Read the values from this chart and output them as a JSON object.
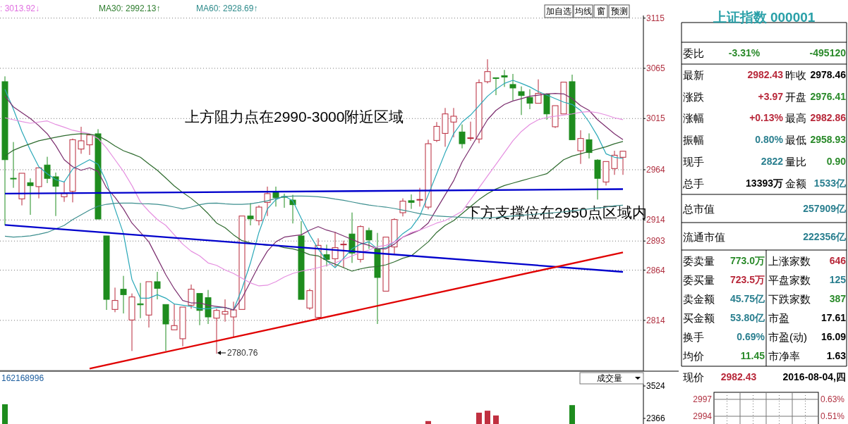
{
  "chart_data": [
    {
      "type": "candlestick",
      "categories": [
        null,
        null,
        null,
        null,
        null,
        null,
        null,
        null,
        null,
        null,
        null,
        null,
        null,
        null,
        null,
        null,
        null,
        null,
        null,
        null,
        null,
        null,
        null,
        null,
        null,
        null,
        null,
        null,
        null,
        null,
        null,
        null,
        null,
        null,
        null,
        null,
        null,
        null,
        null,
        null,
        null,
        null,
        null,
        null,
        null,
        null,
        null,
        null,
        null,
        null,
        null,
        null,
        null,
        null,
        null,
        null,
        null,
        null,
        null,
        null,
        null,
        null,
        null,
        null,
        null,
        null,
        null,
        null,
        null,
        null,
        null,
        null,
        null,
        null
      ],
      "ylim": [
        2764.8,
        3117.6
      ],
      "yticks": [
        3115,
        3065,
        3015,
        2964,
        2914,
        2893,
        2864,
        2814
      ],
      "grid": "y",
      "ohlc": [
        [
          3051.7,
          3057.0,
          2908.6,
          2974.0
        ],
        [
          2955.5,
          2991.6,
          2946.0,
          2954.9
        ],
        [
          2935.0,
          2960.5,
          2928.5,
          2960.5
        ],
        [
          2951.1,
          2955.4,
          2919.1,
          2948.1
        ],
        [
          2947.2,
          2965.9,
          2935.5,
          2965.9
        ],
        [
          2968.7,
          2976.9,
          2950.7,
          2955.4
        ],
        [
          2957.0,
          2961.2,
          2917.9,
          2947.6
        ],
        [
          2937.1,
          2951.8,
          2932.0,
          2940.2
        ],
        [
          2942.5,
          2995.0,
          2931.5,
          2993.9
        ],
        [
          2984.6,
          3006.8,
          2979.9,
          2992.8
        ],
        [
          2988.8,
          2999.8,
          2978.7,
          2998.6
        ],
        [
          2999.8,
          3004.4,
          2914.9,
          2914.9
        ],
        [
          2898.1,
          2898.1,
          2824.4,
          2834.9
        ],
        [
          2824.9,
          2846.6,
          2822.1,
          2833.8
        ],
        [
          2845.0,
          2858.3,
          2820.9,
          2839.6
        ],
        [
          2814.4,
          2840.8,
          2783.5,
          2837.3
        ],
        [
          2830.5,
          2851.3,
          2816.2,
          2829.5
        ],
        [
          2819.3,
          2852.5,
          2806.9,
          2852.5
        ],
        [
          2852.5,
          2862.3,
          2834.9,
          2845.9
        ],
        [
          2829.8,
          2829.8,
          2783.5,
          2810.4
        ],
        [
          2804.6,
          2830.3,
          2804.6,
          2808.8
        ],
        [
          2795.7,
          2827.2,
          2788.2,
          2827.2
        ],
        [
          2829.1,
          2849.7,
          2825.6,
          2845.0
        ],
        [
          2840.8,
          2840.8,
          2809.2,
          2823.9
        ],
        [
          2836.6,
          2844.3,
          2810.4,
          2817.4
        ],
        [
          2816.2,
          2825.6,
          2780.76,
          2823.9
        ],
        [
          2820.2,
          2834.9,
          2812.7,
          2822.8
        ],
        [
          2817.4,
          2832.6,
          2797.5,
          2824.4
        ],
        [
          2824.9,
          2917.9,
          2824.9,
          2917.9
        ],
        [
          2917.9,
          2930.8,
          2908.6,
          2915.1
        ],
        [
          2913.3,
          2928.5,
          2908.6,
          2926.8
        ],
        [
          2931.5,
          2947.2,
          2917.9,
          2940.2
        ],
        [
          2941.8,
          2947.2,
          2927.3,
          2936.2
        ],
        [
          2937.3,
          2940.2,
          2926.1,
          2936.9
        ],
        [
          2933.8,
          2939.0,
          2910.5,
          2929.2
        ],
        [
          2898.1,
          2912.8,
          2834.9,
          2834.9
        ],
        [
          2826.3,
          2845.5,
          2824.4,
          2843.6
        ],
        [
          2817.0,
          2895.7,
          2816.2,
          2888.7
        ],
        [
          2879.4,
          2889.4,
          2867.7,
          2874.7
        ],
        [
          2875.4,
          2902.0,
          2867.7,
          2886.4
        ],
        [
          2889.5,
          2893.4,
          2866.5,
          2889.9
        ],
        [
          2900.0,
          2921.4,
          2871.2,
          2881.0
        ],
        [
          2874.7,
          2908.6,
          2871.7,
          2907.4
        ],
        [
          2903.5,
          2906.3,
          2885.2,
          2894.1
        ],
        [
          2885.2,
          2901.1,
          2810.4,
          2856.7
        ],
        [
          2843.1,
          2896.9,
          2843.1,
          2896.9
        ],
        [
          2887.1,
          2915.6,
          2880.5,
          2914.4
        ],
        [
          2921.2,
          2935.5,
          2917.5,
          2932.7
        ],
        [
          2933.2,
          2939.4,
          2925.0,
          2931.5
        ],
        [
          2934.0,
          2946.0,
          2927.3,
          2934.4
        ],
        [
          2926.8,
          2993.9,
          2924.5,
          2989.9
        ],
        [
          2993.2,
          3011.5,
          2991.6,
          3007.2
        ],
        [
          3000.2,
          3025.5,
          2986.9,
          3019.6
        ],
        [
          3011.5,
          3025.5,
          2996.3,
          3017.3
        ],
        [
          3001.6,
          3009.1,
          2985.3,
          2989.9
        ],
        [
          2995.4,
          3011.9,
          2992.8,
          2995.8
        ],
        [
          2994.6,
          3054.0,
          2990.4,
          3050.7
        ],
        [
          3051.7,
          3074.0,
          3050.0,
          3061.7
        ],
        [
          3055.6,
          3055.6,
          3038.3,
          3055.2
        ],
        [
          3057.7,
          3063.4,
          3046.5,
          3056.3
        ],
        [
          3048.9,
          3059.4,
          3033.0,
          3045.4
        ],
        [
          3041.8,
          3047.0,
          3018.5,
          3037.9
        ],
        [
          3036.0,
          3044.2,
          3024.3,
          3030.2
        ],
        [
          3030.2,
          3054.0,
          3030.2,
          3040.0
        ],
        [
          3039.5,
          3040.0,
          3013.8,
          3019.6
        ],
        [
          3006.8,
          3027.8,
          3005.6,
          3027.8
        ],
        [
          3019.6,
          3051.2,
          3019.6,
          3051.2
        ],
        [
          3051.7,
          3058.7,
          2993.9,
          2993.9
        ],
        [
          2982.9,
          3003.3,
          2969.8,
          2995.1
        ],
        [
          2993.9,
          3000.2,
          2975.2,
          2981.1
        ],
        [
          2973.6,
          2974.5,
          2934.3,
          2955.4
        ],
        [
          2951.8,
          2972.2,
          2948.3,
          2972.2
        ],
        [
          2965.2,
          2982.9,
          2958.9,
          2978.46
        ],
        [
          2976.41,
          2982.86,
          2958.93,
          2982.43
        ]
      ],
      "series": [
        {
          "type": "line",
          "color": "#2aa8b8",
          "values": [
            3044.2,
            3024.3,
            3002.1,
            2983.4,
            2967.0,
            2960.0,
            2954.2,
            2951.8,
            2964.7,
            2969.4,
            2974.0,
            2969.4,
            2951.8,
            2925.0,
            2900.4,
            2854.8,
            2836.1,
            2836.1,
            2839.6,
            2836.1,
            2830.3,
            2829.1,
            2827.9,
            2825.6,
            2825.6,
            2826.8,
            2826.8,
            2824.4,
            2845.5,
            2871.2,
            2901.6,
            2925.0,
            2934.3,
            2937.8,
            2933.1,
            2915.6,
            2899.2,
            2885.2,
            2873.5,
            2866.5,
            2875.9,
            2885.2,
            2889.9,
            2892.2,
            2885.2,
            2886.4,
            2892.2,
            2900.4,
            2906.2,
            2917.9,
            2939.0,
            2960.0,
            2981.1,
            2999.8,
            3011.5,
            3018.5,
            3027.8,
            3037.2,
            3044.2,
            3050.0,
            3053.1,
            3050.0,
            3046.5,
            3041.8,
            3038.3,
            3034.8,
            3031.3,
            3029.0,
            3023.1,
            3011.5,
            2997.4,
            2979.9,
            2976.4,
            2975.2
          ]
        },
        {
          "type": "line",
          "color": "#7b2d6e",
          "values": [
            3037.2,
            3026.6,
            3020.8,
            3015.0,
            3007.9,
            2999.8,
            2988.1,
            2974.0,
            2967.0,
            2963.5,
            2965.9,
            2962.3,
            2946.0,
            2936.6,
            2925.0,
            2910.9,
            2901.6,
            2892.2,
            2875.9,
            2859.5,
            2845.5,
            2833.8,
            2831.4,
            2831.4,
            2829.1,
            2827.9,
            2826.8,
            2824.4,
            2836.1,
            2852.5,
            2868.8,
            2882.9,
            2892.2,
            2896.9,
            2898.1,
            2899.2,
            2903.9,
            2907.4,
            2903.9,
            2901.6,
            2898.1,
            2894.6,
            2891.1,
            2888.7,
            2885.2,
            2885.2,
            2889.9,
            2896.9,
            2900.4,
            2903.9,
            2910.9,
            2925.0,
            2939.0,
            2953.0,
            2971.7,
            2985.7,
            2999.8,
            3013.8,
            3023.1,
            3029.0,
            3032.5,
            3034.8,
            3037.2,
            3038.3,
            3039.5,
            3040.0,
            3039.5,
            3034.8,
            3027.8,
            3023.1,
            3013.8,
            3006.8,
            2999.8,
            2993.9
          ]
        },
        {
          "type": "line",
          "color": "#e58fe0",
          "values": [
            3015.7,
            3013.8,
            3011.9,
            3010.3,
            3011.5,
            3012.6,
            3009.1,
            3006.3,
            3003.3,
            3001.6,
            2999.8,
            2995.1,
            2985.7,
            2974.0,
            2962.3,
            2948.3,
            2932.0,
            2922.6,
            2914.4,
            2908.6,
            2899.2,
            2889.9,
            2882.9,
            2878.2,
            2871.2,
            2868.8,
            2864.2,
            2860.7,
            2856.0,
            2851.3,
            2848.3,
            2849.0,
            2852.5,
            2857.2,
            2860.7,
            2863.0,
            2864.6,
            2866.5,
            2868.8,
            2871.2,
            2874.7,
            2878.2,
            2881.7,
            2884.0,
            2887.5,
            2888.7,
            2892.2,
            2896.9,
            2901.6,
            2903.9,
            2907.4,
            2910.9,
            2913.3,
            2917.9,
            2922.6,
            2934.3,
            2946.0,
            2957.7,
            2969.4,
            2981.1,
            2992.8,
            3002.1,
            3009.1,
            3013.8,
            3016.1,
            3017.3,
            3018.5,
            3019.6,
            3021.3,
            3022.0,
            3020.8,
            3018.5,
            3015.7,
            3013.9
          ]
        },
        {
          "type": "line",
          "color": "#2e6b2e",
          "values": [
            2977.6,
            2983.4,
            2986.9,
            2989.9,
            2992.8,
            2994.6,
            2996.3,
            2997.9,
            2999.1,
            2999.8,
            2999.3,
            2997.9,
            2993.2,
            2987.6,
            2982.9,
            2979.9,
            2976.4,
            2969.8,
            2963.5,
            2955.8,
            2947.9,
            2941.3,
            2935.5,
            2928.5,
            2920.3,
            2910.9,
            2906.3,
            2899.2,
            2893.4,
            2891.1,
            2889.9,
            2888.7,
            2888.7,
            2886.4,
            2885.2,
            2882.9,
            2879.4,
            2878.2,
            2873.5,
            2870.0,
            2866.5,
            2863.0,
            2865.3,
            2867.0,
            2867.7,
            2869.3,
            2872.3,
            2875.9,
            2878.2,
            2885.2,
            2892.2,
            2901.6,
            2908.6,
            2913.3,
            2920.3,
            2927.3,
            2934.3,
            2940.2,
            2944.8,
            2948.3,
            2950.7,
            2953.0,
            2955.4,
            2957.7,
            2960.0,
            2967.0,
            2974.0,
            2977.6,
            2979.9,
            2982.2,
            2984.6,
            2986.9,
            2989.9,
            2992.1
          ]
        },
        {
          "type": "line",
          "color": "#3d8f8f",
          "values": [
            2897.8,
            2896.9,
            2897.4,
            2898.1,
            2899.7,
            2901.6,
            2905.1,
            2908.6,
            2914.4,
            2919.1,
            2923.8,
            2927.7,
            2929.6,
            2930.6,
            2930.8,
            2930.8,
            2930.3,
            2930.1,
            2929.6,
            2928.5,
            2926.8,
            2925.0,
            2926.8,
            2929.2,
            2930.6,
            2930.8,
            2930.1,
            2929.6,
            2929.6,
            2930.1,
            2931.5,
            2933.1,
            2935.5,
            2937.1,
            2937.8,
            2937.8,
            2937.6,
            2937.1,
            2936.2,
            2934.8,
            2933.6,
            2931.9,
            2930.3,
            2928.9,
            2927.7,
            2926.8,
            2925.4,
            2923.8,
            2922.1,
            2920.3,
            2919.1,
            2917.9,
            2917.5,
            2917.0,
            2916.5,
            2916.1,
            2915.8,
            2916.1,
            2916.5,
            2917.2,
            2917.9,
            2918.6,
            2919.3,
            2920.0,
            2920.7,
            2921.4,
            2922.1,
            2923.1,
            2924.0,
            2925.0,
            2925.9,
            2926.8,
            2928.2,
            2928.7
          ]
        },
        {
          "type": "line",
          "color": "#0000cc",
          "values": [
            2940.2,
            null,
            null,
            null,
            null,
            null,
            null,
            null,
            null,
            null,
            null,
            null,
            null,
            null,
            null,
            null,
            null,
            null,
            null,
            null,
            null,
            null,
            null,
            null,
            null,
            null,
            null,
            null,
            null,
            null,
            null,
            null,
            null,
            null,
            null,
            null,
            null,
            null,
            null,
            null,
            null,
            null,
            null,
            null,
            null,
            null,
            null,
            null,
            null,
            null,
            null,
            null,
            null,
            null,
            null,
            null,
            null,
            null,
            null,
            null,
            null,
            null,
            null,
            null,
            null,
            null,
            null,
            null,
            null,
            null,
            null,
            null,
            null,
            2944.7
          ]
        },
        {
          "type": "line",
          "color": "#0000cc",
          "values": [
            2909.0,
            null,
            null,
            null,
            null,
            null,
            null,
            null,
            null,
            null,
            null,
            null,
            null,
            null,
            null,
            null,
            null,
            null,
            null,
            null,
            null,
            null,
            null,
            null,
            null,
            null,
            null,
            null,
            null,
            null,
            null,
            null,
            null,
            null,
            null,
            null,
            null,
            null,
            null,
            null,
            null,
            null,
            null,
            null,
            null,
            null,
            null,
            null,
            null,
            null,
            null,
            null,
            null,
            null,
            null,
            null,
            null,
            null,
            null,
            null,
            null,
            null,
            null,
            null,
            null,
            null,
            null,
            null,
            null,
            null,
            null,
            null,
            null,
            2862.3
          ]
        },
        {
          "type": "line",
          "color": "#e00000",
          "values": [
            null,
            null,
            null,
            null,
            null,
            null,
            null,
            null,
            null,
            null,
            2766.0,
            null,
            null,
            null,
            null,
            null,
            null,
            null,
            null,
            null,
            null,
            null,
            null,
            null,
            null,
            null,
            null,
            null,
            null,
            null,
            null,
            null,
            null,
            null,
            null,
            null,
            null,
            null,
            null,
            null,
            null,
            null,
            null,
            null,
            null,
            null,
            null,
            null,
            null,
            null,
            null,
            null,
            null,
            null,
            null,
            null,
            null,
            null,
            null,
            null,
            null,
            null,
            null,
            null,
            null,
            null,
            null,
            null,
            null,
            null,
            null,
            null,
            null,
            2881.7
          ]
        }
      ],
      "annotations": [
        "上方阻力点在2990-3000附近区域",
        "下方支撑位在2950点区域内",
        ": 3013.92↓",
        "MA30: 2992.13↑",
        "MA60: 2928.69↑",
        "加自选",
        "均线",
        "窗",
        "预测",
        "2780.76"
      ]
    },
    {
      "type": "bar",
      "categories": [
        null,
        null,
        null,
        null,
        null,
        null,
        null,
        null,
        null,
        null,
        null,
        null,
        null,
        null,
        null,
        null,
        null,
        null,
        null,
        null,
        null,
        null,
        null,
        null,
        null,
        null,
        null,
        null,
        null,
        null,
        null,
        null,
        null,
        null,
        null,
        null,
        null,
        null,
        null,
        null,
        null,
        null,
        null,
        null,
        null,
        null,
        null,
        null,
        null,
        null,
        null,
        null,
        null,
        null,
        null,
        null,
        null,
        null,
        null,
        null,
        null,
        null,
        null,
        null,
        null,
        null,
        null,
        null,
        null,
        null,
        null,
        null,
        null,
        null
      ],
      "values": [
        2870,
        null,
        null,
        null,
        null,
        null,
        null,
        null,
        null,
        null,
        null,
        null,
        null,
        null,
        null,
        null,
        null,
        null,
        null,
        null,
        null,
        null,
        null,
        null,
        null,
        null,
        null,
        null,
        null,
        null,
        null,
        null,
        null,
        null,
        null,
        null,
        null,
        null,
        null,
        null,
        null,
        null,
        null,
        null,
        null,
        null,
        null,
        null,
        null,
        null,
        2270,
        null,
        null,
        null,
        null,
        null,
        2570,
        2640,
        2470,
        null,
        null,
        null,
        null,
        null,
        null,
        null,
        null,
        2840,
        null,
        null,
        null,
        null,
        null,
        null
      ],
      "colors": [
        "#1e8c1e",
        null,
        null,
        null,
        null,
        null,
        null,
        null,
        null,
        null,
        null,
        null,
        null,
        null,
        null,
        null,
        null,
        null,
        null,
        null,
        null,
        null,
        null,
        null,
        null,
        null,
        null,
        null,
        null,
        null,
        null,
        null,
        null,
        null,
        null,
        null,
        null,
        null,
        null,
        null,
        null,
        null,
        null,
        null,
        null,
        null,
        null,
        null,
        null,
        null,
        "#c03040",
        null,
        null,
        null,
        null,
        null,
        "#c03040",
        "#c03040",
        "#c03040",
        null,
        null,
        null,
        null,
        null,
        null,
        null,
        null,
        "#1e8c1e",
        null,
        null,
        null,
        null,
        null,
        null
      ],
      "ylim": [
        2165,
        3600
      ],
      "yticks": [
        3524,
        2366
      ],
      "annotations": [
        "162168996",
        "成交量"
      ]
    },
    {
      "type": "other",
      "annotations": [
        "2997",
        "2994",
        "0.63%",
        "0.51%"
      ]
    },
    {
      "type": "other",
      "annotations": [
        "上证指数 000001",
        "委比",
        "-3.31%",
        "-495120",
        "最新",
        "2982.43",
        "昨收",
        "2978.46",
        "涨跌",
        "+3.97",
        "开盘",
        "2976.41",
        "涨幅",
        "+0.13%",
        "最高",
        "2982.86",
        "振幅",
        "0.80%",
        "最低",
        "2958.93",
        "现手",
        "2822",
        "量比",
        "0.90",
        "总手",
        "13393万",
        "金额",
        "1533亿",
        "总市值",
        "257909亿",
        "流通市值",
        "222356亿",
        "委卖量",
        "773.0万",
        "上涨家数",
        "646",
        "委买量",
        "723.5万",
        "平盘家数",
        "125",
        "卖金额",
        "45.75亿",
        "下跌家数",
        "387",
        "买金额",
        "53.80亿",
        "市盈",
        "17.61",
        "换手",
        "0.69%",
        "市盈(动)",
        "16.09",
        "均价",
        "11.45",
        "市净率",
        "1.63",
        "现价",
        "2982.43",
        "2016-08-04,四"
      ]
    }
  ]
}
